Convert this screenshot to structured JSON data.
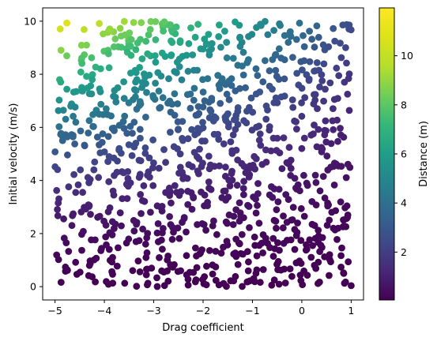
{
  "chart_data": {
    "type": "scatter",
    "title": "",
    "xlabel": "Drag coefficient",
    "ylabel": "Initial velocity (m/s)",
    "xlim": [
      -5.25,
      1.25
    ],
    "ylim": [
      -0.5,
      10.5
    ],
    "xticks": [
      -5,
      -4,
      -3,
      -2,
      -1,
      0,
      1
    ],
    "yticks": [
      0,
      2,
      4,
      6,
      8,
      10
    ],
    "colorbar": {
      "label": "Distance (m)",
      "range": [
        0.05,
        11.95
      ],
      "ticks": [
        2,
        4,
        6,
        8,
        10
      ],
      "colormap": "viridis"
    },
    "grid": false,
    "point_count": 1000,
    "point_generation": "x uniform in [-5, 1], y uniform in [0, 10], color = distance"
  }
}
